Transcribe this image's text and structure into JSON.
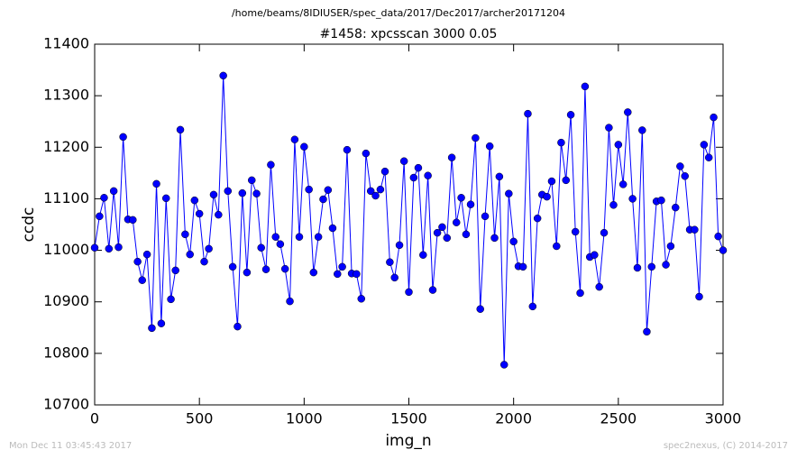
{
  "chart_data": {
    "type": "line",
    "suptitle": "/home/beams/8IDIUSER/spec_data/2017/Dec2017/archer20171204",
    "title": "#1458: xpcsscan 3000 0.05",
    "xlabel": "img_n",
    "ylabel": "ccdc",
    "annotations": [
      "Mon Dec 11 03:45:43 2017",
      "spec2nexus, (C) 2014-2017"
    ],
    "color": "#0000ff",
    "xlim": [
      0,
      3000
    ],
    "xticks": [
      0,
      500,
      1000,
      1500,
      2000,
      2500,
      3000
    ],
    "ylim": [
      10700,
      11400
    ],
    "yticks": [
      10700,
      10800,
      10900,
      11000,
      11100,
      11200,
      11300,
      11400
    ],
    "x": [
      0,
      23,
      45,
      68,
      91,
      114,
      136,
      159,
      182,
      205,
      227,
      250,
      273,
      295,
      318,
      341,
      364,
      386,
      409,
      432,
      455,
      477,
      500,
      523,
      545,
      568,
      591,
      614,
      636,
      659,
      682,
      705,
      727,
      750,
      773,
      795,
      818,
      841,
      864,
      886,
      909,
      932,
      955,
      977,
      1000,
      1023,
      1045,
      1068,
      1091,
      1114,
      1136,
      1159,
      1182,
      1205,
      1227,
      1250,
      1273,
      1295,
      1318,
      1341,
      1364,
      1386,
      1409,
      1432,
      1455,
      1477,
      1500,
      1523,
      1545,
      1568,
      1591,
      1614,
      1636,
      1659,
      1682,
      1705,
      1727,
      1750,
      1773,
      1795,
      1818,
      1841,
      1864,
      1886,
      1909,
      1932,
      1955,
      1977,
      2000,
      2023,
      2045,
      2068,
      2091,
      2114,
      2136,
      2159,
      2182,
      2205,
      2227,
      2250,
      2273,
      2295,
      2318,
      2341,
      2364,
      2386,
      2409,
      2432,
      2455,
      2477,
      2500,
      2523,
      2545,
      2568,
      2591,
      2614,
      2636,
      2659,
      2682,
      2705,
      2727,
      2750,
      2773,
      2795,
      2818,
      2841,
      2864,
      2886,
      2909,
      2932,
      2955,
      2977,
      3000
    ],
    "values": [
      11005,
      11066,
      11102,
      11003,
      11115,
      11006,
      11220,
      11060,
      11059,
      10978,
      10942,
      10992,
      10849,
      11129,
      10858,
      11101,
      10905,
      10961,
      11234,
      11031,
      10992,
      11097,
      11071,
      10978,
      11003,
      11108,
      11069,
      11339,
      11115,
      10968,
      10852,
      11111,
      10957,
      11136,
      11110,
      11005,
      10963,
      11166,
      11026,
      11012,
      10964,
      10901,
      11215,
      11026,
      11201,
      11118,
      10957,
      11026,
      11099,
      11117,
      11043,
      10954,
      10968,
      11195,
      10955,
      10954,
      10906,
      11188,
      11115,
      11106,
      11118,
      11153,
      10977,
      10947,
      11010,
      11173,
      10919,
      11141,
      11160,
      10991,
      11145,
      10923,
      11034,
      11045,
      11024,
      11180,
      11054,
      11102,
      11031,
      11089,
      11218,
      10886,
      11066,
      11202,
      11024,
      11143,
      10778,
      11110,
      11017,
      10969,
      10968,
      11265,
      10891,
      11062,
      11108,
      11104,
      11134,
      11008,
      11209,
      11136,
      11263,
      11036,
      10917,
      11318,
      10987,
      10991,
      10929,
      11034,
      11238,
      11088,
      11205,
      11128,
      11268,
      11100,
      10966,
      11233,
      10842,
      10968,
      11095,
      11097,
      10972,
      11008,
      11083,
      11163,
      11144,
      11040,
      11040,
      10910,
      11205,
      11180,
      11258,
      11027,
      11000
    ]
  }
}
